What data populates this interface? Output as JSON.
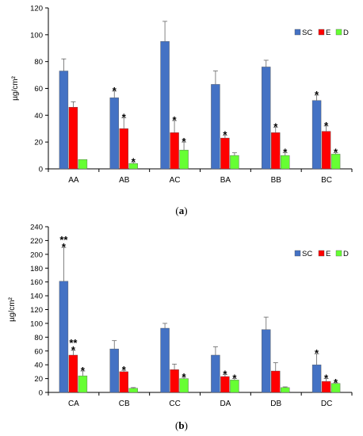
{
  "chart_data": [
    {
      "type": "bar",
      "caption": "(a)",
      "ylabel": "µg/cm²",
      "ylim": [
        0,
        120
      ],
      "yticks": [
        0,
        20,
        40,
        60,
        80,
        100,
        120
      ],
      "grid": false,
      "legend_position": "top-right",
      "categories": [
        "AA",
        "AB",
        "AC",
        "BA",
        "BB",
        "BC"
      ],
      "series": [
        {
          "name": "SC",
          "color": "#4472C4",
          "values": [
            73,
            53,
            95,
            63,
            76,
            51
          ],
          "errors": [
            9,
            5,
            15,
            10,
            5,
            4
          ],
          "markers": [
            "",
            "*",
            "",
            "",
            "",
            "*"
          ]
        },
        {
          "name": "E",
          "color": "#FF0000",
          "values": [
            46,
            30,
            27,
            23,
            27,
            28
          ],
          "errors": [
            4,
            8,
            9,
            2,
            4,
            4
          ],
          "markers": [
            "",
            "*",
            "*",
            "*",
            "*",
            "*"
          ]
        },
        {
          "name": "D",
          "color": "#66FF33",
          "values": [
            7,
            4,
            14,
            10,
            10,
            11
          ],
          "errors": [
            0,
            1,
            6,
            2,
            2,
            1
          ],
          "markers": [
            "",
            "*",
            "*",
            "",
            "*",
            "*"
          ]
        }
      ]
    },
    {
      "type": "bar",
      "caption": "(b)",
      "ylabel": "µg/cm²",
      "ylim": [
        0,
        240
      ],
      "yticks": [
        0,
        20,
        40,
        60,
        80,
        100,
        120,
        140,
        160,
        180,
        200,
        220,
        240
      ],
      "grid": false,
      "legend_position": "top-right",
      "categories": [
        "CA",
        "CB",
        "CC",
        "DA",
        "DB",
        "DC"
      ],
      "series": [
        {
          "name": "SC",
          "color": "#4472C4",
          "values": [
            161,
            63,
            93,
            54,
            91,
            40
          ],
          "errors": [
            49,
            12,
            7,
            12,
            18,
            16
          ],
          "markers": [
            "**\n*",
            "",
            "",
            "",
            "",
            "*"
          ]
        },
        {
          "name": "E",
          "color": "#FF0000",
          "values": [
            54,
            30,
            33,
            23,
            31,
            16
          ],
          "errors": [
            7,
            2,
            8,
            3,
            12,
            4
          ],
          "markers": [
            "**\n*",
            "*",
            "",
            "*",
            "",
            "*"
          ]
        },
        {
          "name": "D",
          "color": "#66FF33",
          "values": [
            24,
            6,
            20,
            18,
            7,
            13
          ],
          "errors": [
            7,
            1,
            2,
            2,
            1,
            1
          ],
          "markers": [
            "*",
            "",
            "*",
            "*",
            "",
            "*"
          ]
        }
      ]
    }
  ]
}
